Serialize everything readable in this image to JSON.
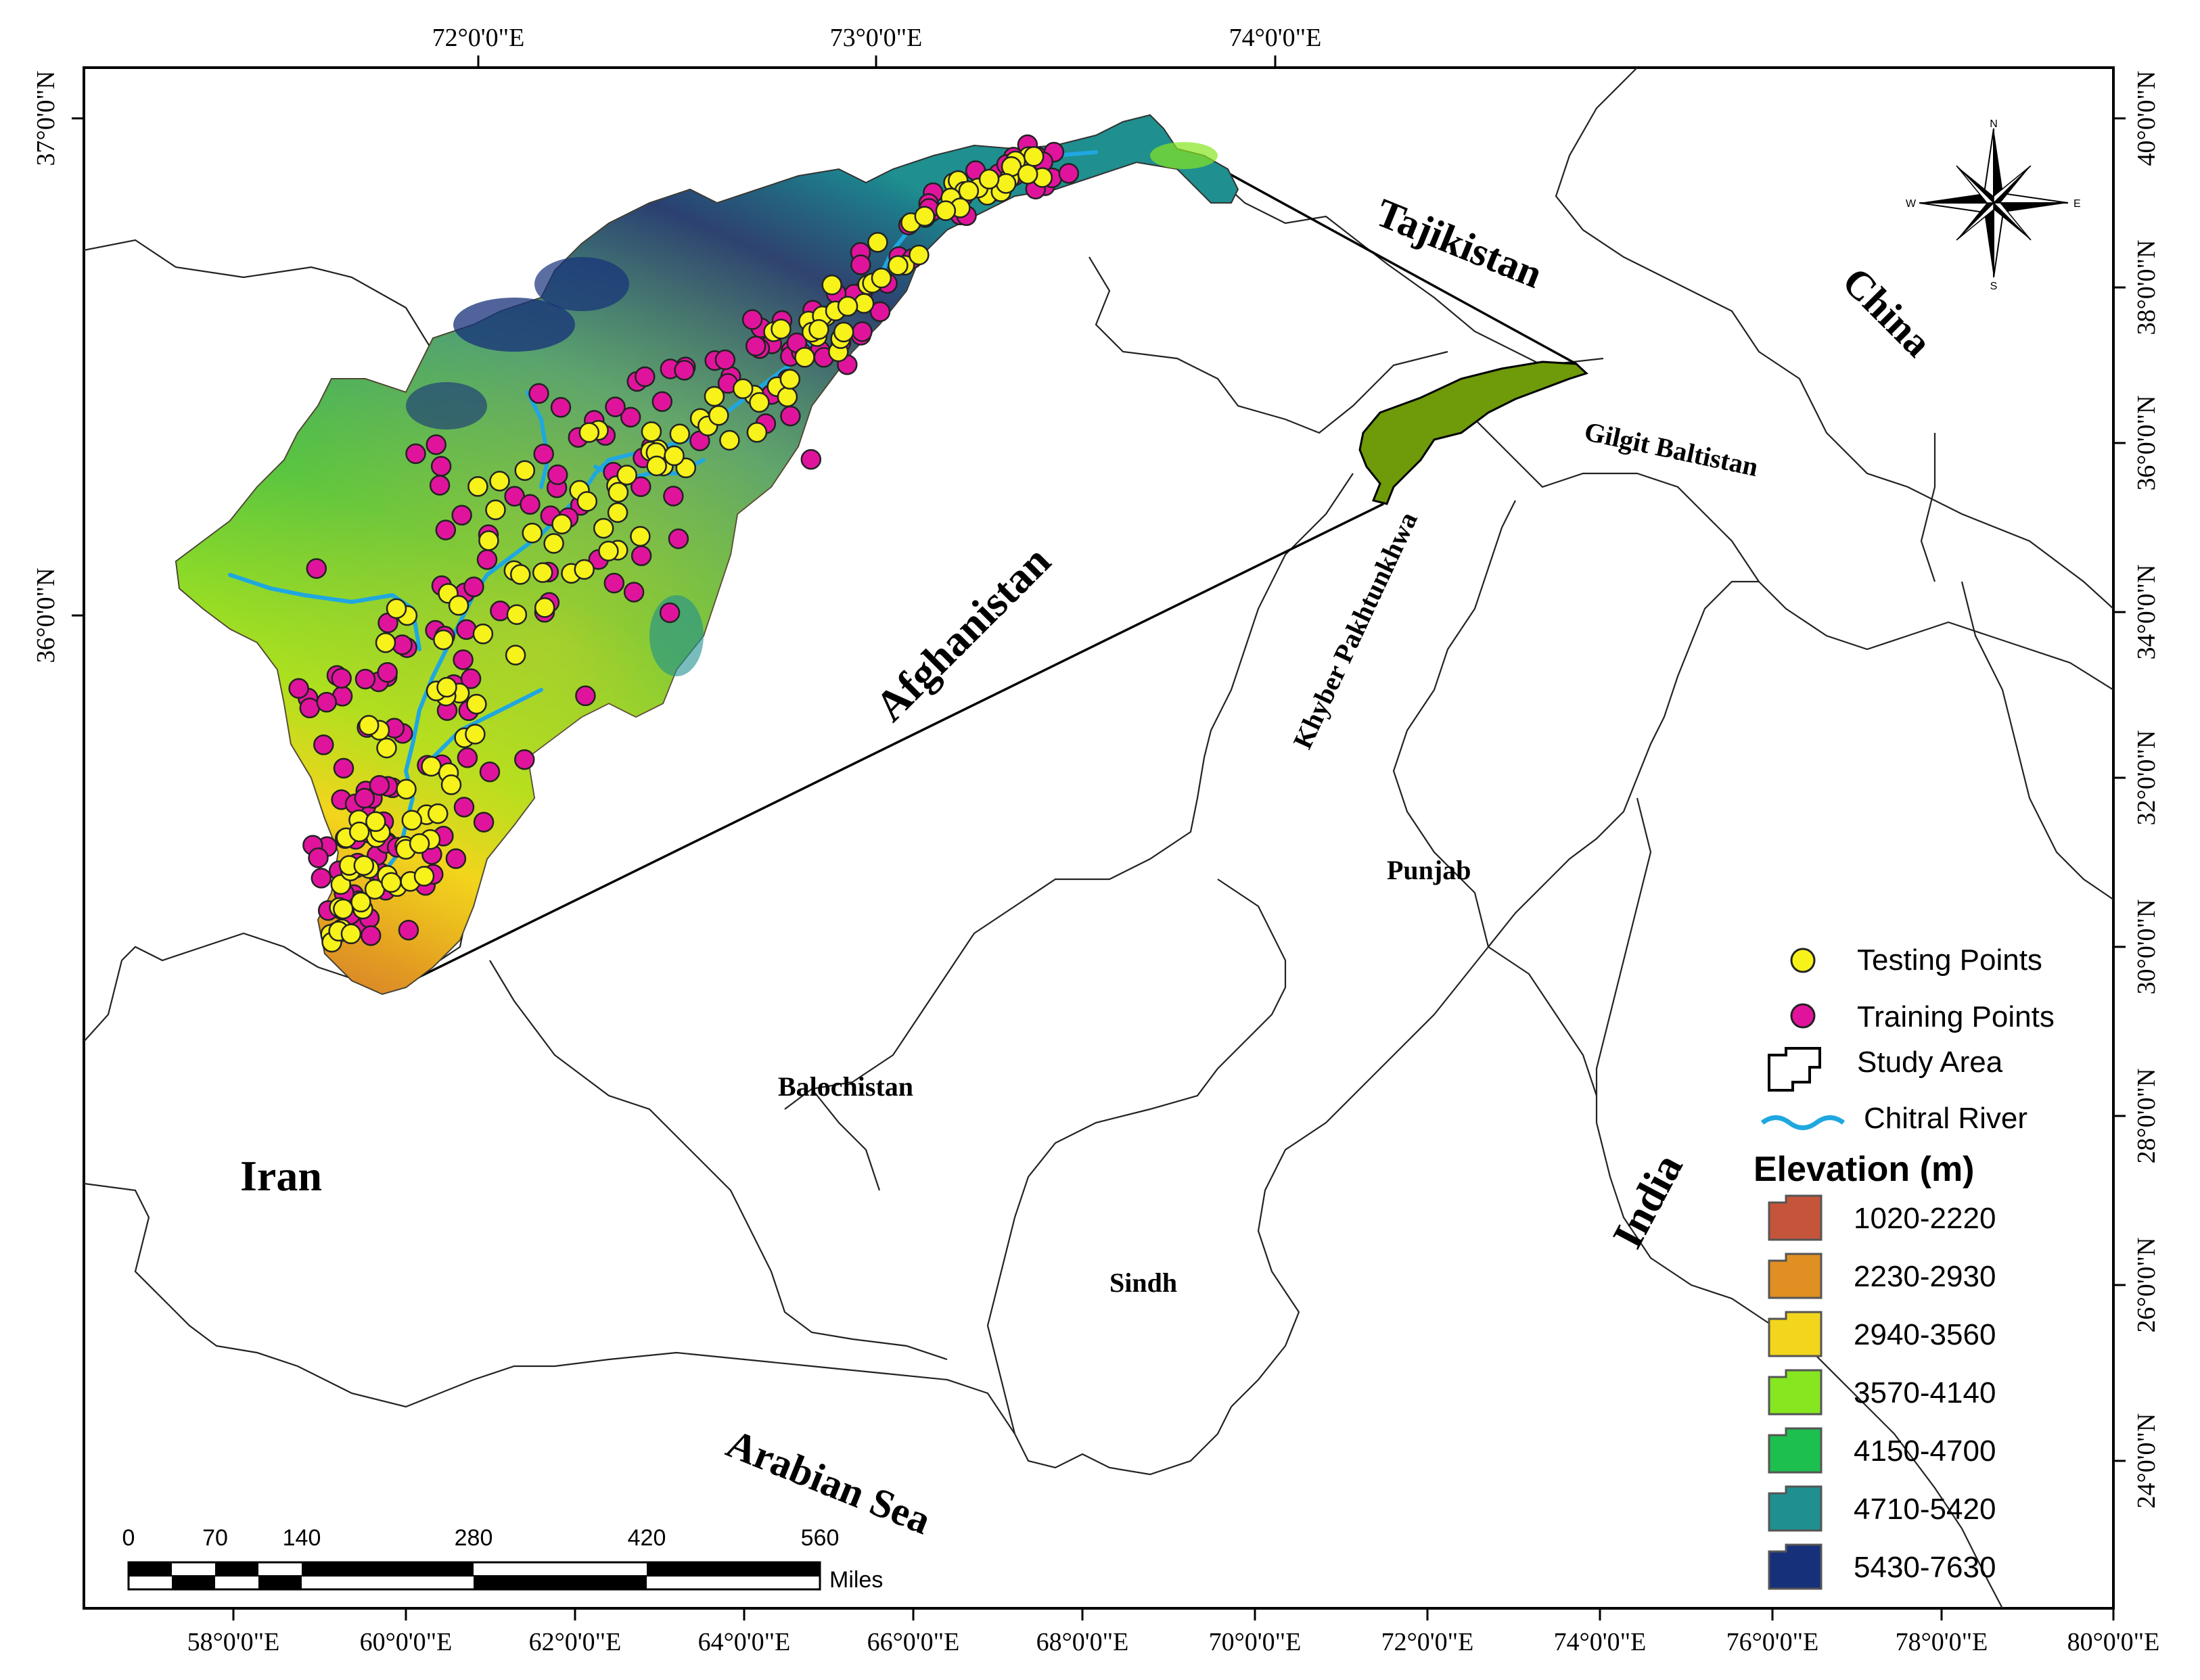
{
  "top_axis": [
    "72°0'0\"E",
    "73°0'0\"E",
    "74°0'0\"E"
  ],
  "left_axis": [
    "37°0'0\"N",
    "36°0'0\"N"
  ],
  "bottom_axis": [
    "58°0'0\"E",
    "60°0'0\"E",
    "62°0'0\"E",
    "64°0'0\"E",
    "66°0'0\"E",
    "68°0'0\"E",
    "70°0'0\"E",
    "72°0'0\"E",
    "74°0'0\"E",
    "76°0'0\"E",
    "78°0'0\"E",
    "80°0'0\"E"
  ],
  "right_axis": [
    "40°0'0\"N",
    "38°0'0\"N",
    "36°0'0\"N",
    "34°0'0\"N",
    "32°0'0\"N",
    "30°0'0\"N",
    "28°0'0\"N",
    "26°0'0\"N",
    "24°0'0\"N"
  ],
  "labels": {
    "tajikistan": "Tajikistan",
    "china": "China",
    "afghanistan": "Afghanistan",
    "gilgit": "Gilgit Baltistan",
    "kp": "Khyber Pakhtunkhwa",
    "punjab": "Punjab",
    "balochistan": "Balochistan",
    "iran": "Iran",
    "india": "India",
    "sindh": "Sindh",
    "arabian_sea": "Arabian Sea"
  },
  "compass": {
    "n": "N",
    "s": "S",
    "e": "E",
    "w": "W"
  },
  "legend": {
    "testing": "Testing Points",
    "training": "Training Points",
    "study_area": "Study Area",
    "river": "Chitral River",
    "elevation_title": "Elevation (m)",
    "classes": [
      {
        "label": "1020-2220",
        "color": "#c4553a"
      },
      {
        "label": "2230-2930",
        "color": "#e08f22"
      },
      {
        "label": "2940-3560",
        "color": "#f2d51c"
      },
      {
        "label": "3570-4140",
        "color": "#86e620"
      },
      {
        "label": "4150-4700",
        "color": "#1dbf4e"
      },
      {
        "label": "4710-5420",
        "color": "#1f8f8f"
      },
      {
        "label": "5430-7630",
        "color": "#16307a"
      }
    ]
  },
  "point_colors": {
    "testing": "#f7f21a",
    "training": "#e0149c"
  },
  "scale": {
    "ticks": [
      "0",
      "70",
      "140",
      "280",
      "420",
      "560"
    ],
    "unit": "Miles"
  }
}
